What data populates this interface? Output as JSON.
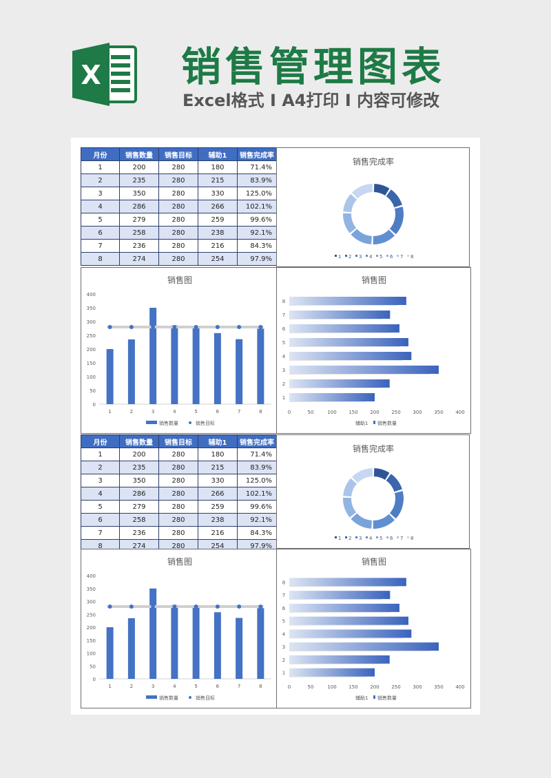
{
  "header": {
    "title": "销售管理图表",
    "subtitle": "Excel格式 I A4打印 I 内容可修改",
    "logo_letter": "X"
  },
  "colors": {
    "title_green": "#1e7a46",
    "accent_blue": "#4472c4",
    "header_bg": "#3f6dc2",
    "alt_row": "#dbe3f4"
  },
  "table": {
    "headers": [
      "月份",
      "销售数量",
      "销售目标",
      "辅助1",
      "销售完成率"
    ],
    "rows": [
      [
        "1",
        "200",
        "280",
        "180",
        "71.4%"
      ],
      [
        "2",
        "235",
        "280",
        "215",
        "83.9%"
      ],
      [
        "3",
        "350",
        "280",
        "330",
        "125.0%"
      ],
      [
        "4",
        "286",
        "280",
        "266",
        "102.1%"
      ],
      [
        "5",
        "279",
        "280",
        "259",
        "99.6%"
      ],
      [
        "6",
        "258",
        "280",
        "238",
        "92.1%"
      ],
      [
        "7",
        "236",
        "280",
        "216",
        "84.3%"
      ],
      [
        "8",
        "274",
        "280",
        "254",
        "97.9%"
      ]
    ]
  },
  "chart_data": [
    {
      "type": "pie",
      "title": "销售完成率",
      "categories": [
        "1",
        "2",
        "3",
        "4",
        "5",
        "6",
        "7",
        "8"
      ],
      "values": [
        71.4,
        83.9,
        125.0,
        102.1,
        99.6,
        92.1,
        84.3,
        97.9
      ],
      "donut": true,
      "legend": "bottom"
    },
    {
      "type": "bar",
      "title": "销售图",
      "categories": [
        "1",
        "2",
        "3",
        "4",
        "5",
        "6",
        "7",
        "8"
      ],
      "series": [
        {
          "name": "销售数量",
          "type": "bar",
          "values": [
            200,
            235,
            350,
            286,
            279,
            258,
            236,
            274
          ]
        },
        {
          "name": "销售目标",
          "type": "line",
          "values": [
            280,
            280,
            280,
            280,
            280,
            280,
            280,
            280
          ]
        }
      ],
      "ylim": [
        0,
        400
      ],
      "yticks": [
        0,
        50,
        100,
        150,
        200,
        250,
        300,
        350,
        400
      ],
      "legend": "bottom"
    },
    {
      "type": "bar",
      "orientation": "horizontal",
      "title": "销售图",
      "categories": [
        "1",
        "2",
        "3",
        "4",
        "5",
        "6",
        "7",
        "8"
      ],
      "series": [
        {
          "name": "辅助1",
          "values": [
            180,
            215,
            330,
            266,
            259,
            238,
            216,
            254
          ]
        },
        {
          "name": "销售数量",
          "values": [
            200,
            235,
            350,
            286,
            279,
            258,
            236,
            274
          ]
        }
      ],
      "xlim": [
        0,
        400
      ],
      "xticks": [
        0,
        50,
        100,
        150,
        200,
        250,
        300,
        350,
        400
      ],
      "legend": "bottom"
    }
  ]
}
